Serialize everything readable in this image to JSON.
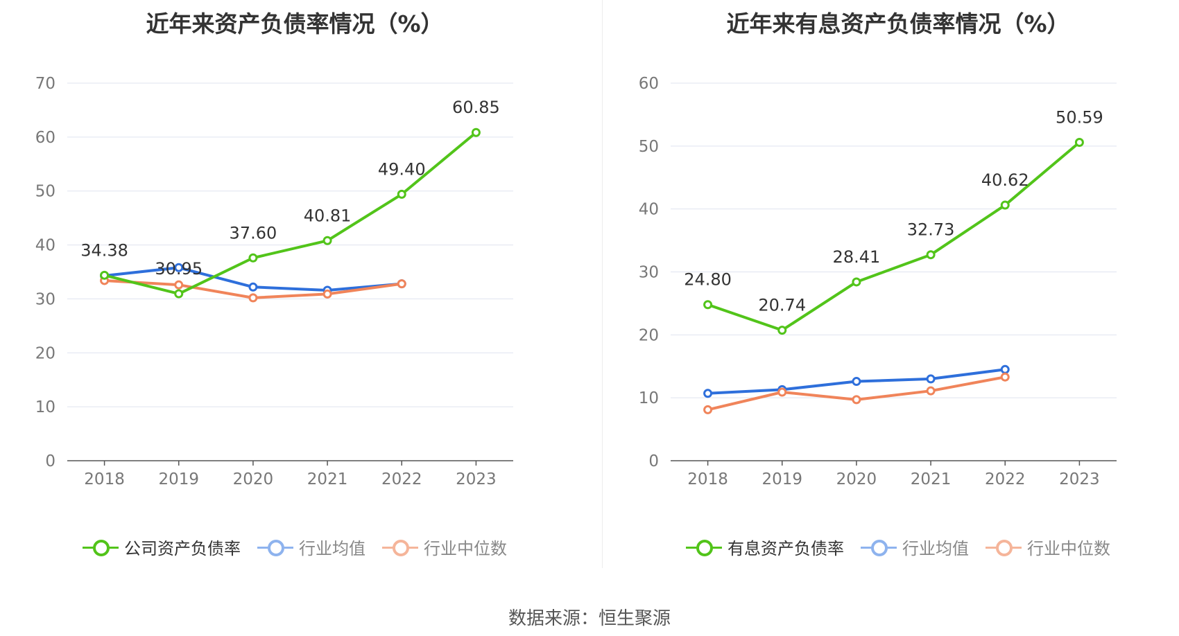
{
  "source": "数据来源：恒生聚源",
  "colors": {
    "company": "#52c41a",
    "avg": "#2e6fdb",
    "median": "#f0845a"
  },
  "chart_data": [
    {
      "type": "line",
      "title": "近年来资产负债率情况（%）",
      "categories": [
        "2018",
        "2019",
        "2020",
        "2021",
        "2022",
        "2023"
      ],
      "ylim": [
        0,
        70
      ],
      "yticks": [
        "0",
        "10",
        "20",
        "30",
        "40",
        "50",
        "60",
        "70"
      ],
      "grid": true,
      "legend_position": "bottom",
      "series": [
        {
          "name": "公司资产负债率",
          "color": "#52c41a",
          "values": [
            34.38,
            30.95,
            37.6,
            40.81,
            49.4,
            60.85
          ],
          "labels": [
            "34.38",
            "30.95",
            "37.60",
            "40.81",
            "49.40",
            "60.85"
          ]
        },
        {
          "name": "行业均值",
          "color": "#2e6fdb",
          "values": [
            34.3,
            35.8,
            32.2,
            31.6,
            32.8,
            null
          ]
        },
        {
          "name": "行业中位数",
          "color": "#f0845a",
          "values": [
            33.4,
            32.6,
            30.2,
            30.9,
            32.8,
            null
          ]
        }
      ]
    },
    {
      "type": "line",
      "title": "近年来有息资产负债率情况（%）",
      "categories": [
        "2018",
        "2019",
        "2020",
        "2021",
        "2022",
        "2023"
      ],
      "ylim": [
        0,
        60
      ],
      "yticks": [
        "0",
        "10",
        "20",
        "30",
        "40",
        "50",
        "60"
      ],
      "grid": true,
      "legend_position": "bottom",
      "series": [
        {
          "name": "有息资产负债率",
          "color": "#52c41a",
          "values": [
            24.8,
            20.74,
            28.41,
            32.73,
            40.62,
            50.59
          ],
          "labels": [
            "24.80",
            "20.74",
            "28.41",
            "32.73",
            "40.62",
            "50.59"
          ]
        },
        {
          "name": "行业均值",
          "color": "#2e6fdb",
          "values": [
            10.7,
            11.3,
            12.6,
            13.0,
            14.5,
            null
          ]
        },
        {
          "name": "行业中位数",
          "color": "#f0845a",
          "values": [
            8.1,
            10.9,
            9.7,
            11.1,
            13.3,
            null
          ]
        }
      ]
    }
  ]
}
